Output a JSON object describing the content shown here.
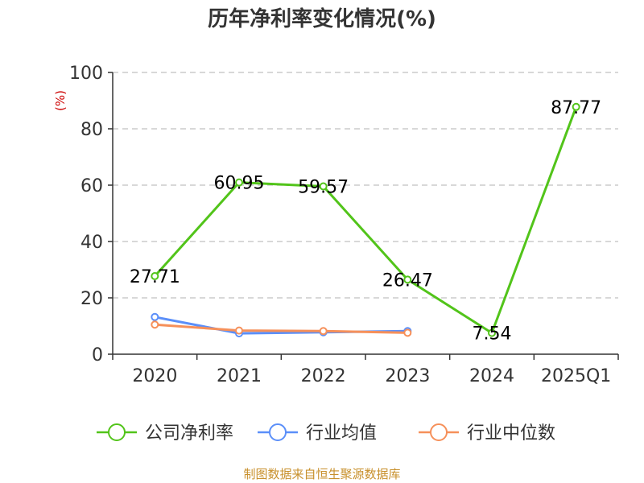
{
  "chart_data": {
    "type": "line",
    "title": "历年净利率变化情况(%)",
    "ylabel": "(%)",
    "xlabel": "",
    "categories": [
      "2020",
      "2021",
      "2022",
      "2023",
      "2024",
      "2025Q1"
    ],
    "ylim": [
      0,
      100
    ],
    "yticks": [
      0,
      20,
      40,
      60,
      80,
      100
    ],
    "grid": true,
    "legend_position": "bottom",
    "series": [
      {
        "name": "公司净利率",
        "color": "#52c41a",
        "values": [
          27.71,
          60.95,
          59.57,
          26.47,
          7.54,
          87.77
        ],
        "labels": [
          "27.71",
          "60.95",
          "59.57",
          "26.47",
          "7.54",
          "87.77"
        ]
      },
      {
        "name": "行业均值",
        "color": "#5b8ff9",
        "values": [
          13.2,
          7.4,
          7.8,
          8.2,
          null,
          null
        ]
      },
      {
        "name": "行业中位数",
        "color": "#f6905a",
        "values": [
          10.5,
          8.4,
          8.2,
          7.6,
          null,
          null
        ]
      }
    ],
    "source": "制图数据来自恒生聚源数据库"
  }
}
